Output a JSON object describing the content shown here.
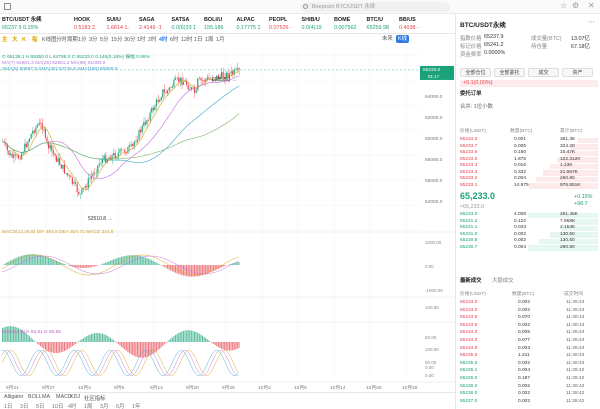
{
  "tabs": {
    "search_placeholder": "Beepcoin BTC/USDT 永续",
    "icons": [
      "home-icon",
      "star-icon",
      "settings-icon",
      "close-icon"
    ]
  },
  "tickers": [
    {
      "name": "BTC/USDT 永续",
      "price": "65237.9",
      "chg": "0.15%",
      "c": "g"
    },
    {
      "name": "HOOK",
      "price": "0.5183",
      "chg": "2.",
      "c": "r"
    },
    {
      "name": "SUI/U",
      "price": "1.6614",
      "chg": "1.",
      "c": "r"
    },
    {
      "name": "SAGA",
      "price": "2.4149",
      "chg": "-1",
      "c": "r"
    },
    {
      "name": "SATSA",
      "price": "0.0(6)33",
      "chg": "1",
      "c": "g"
    },
    {
      "name": "BOLI/U",
      "price": "155.186",
      "chg": "",
      "c": "g"
    },
    {
      "name": "ALPAC",
      "price": "0.17775",
      "chg": "1",
      "c": "g"
    },
    {
      "name": "PEOPL",
      "price": "0.07526",
      "chg": "-",
      "c": "r"
    },
    {
      "name": "SHIB/U",
      "price": "0.0(4)19",
      "chg": "",
      "c": "g"
    },
    {
      "name": "BOME",
      "price": "0.007562",
      "chg": "",
      "c": "g"
    },
    {
      "name": "BTC/U",
      "price": "65259.98",
      "chg": "",
      "c": "g"
    },
    {
      "name": "BB/US",
      "price": "0.4038",
      "chg": "-",
      "c": "r"
    }
  ],
  "toolbar": {
    "tools": [
      "主",
      "大",
      "K",
      "指"
    ],
    "chart_label": "K线图",
    "timeframes": [
      "分时",
      "周期",
      "1分",
      "3分",
      "5分",
      "15分",
      "30分",
      "1时",
      "2时",
      "4时",
      "6时",
      "12时",
      "1日",
      "1周",
      "1月"
    ],
    "active_tf": "4时",
    "right_labels": [
      "未来",
      "K线",
      ""
    ],
    "active_right": "K线"
  },
  "chart_info": {
    "pair": "BTC/USDT永续 · 4h",
    "ohlc": "O 65139.1 H 65350.0 L 64798.0 C 65233.0",
    "chg": "0.145(0.16%) 振幅 0.86%",
    "ma": "MA(7) 64861.3  MA(25) 62961.2  MA(99) 61000.9",
    "sma": "SMA(5) 60987.9  SMA(30) 63745.8  SMA(180) 60000.0",
    "high_label": "65858.0",
    "low_label": "52510.8",
    "last_price": "65233.0",
    "last_countdown": "01:17"
  },
  "price_axis": [
    "66000.0",
    "64000.0",
    "62000.0",
    "60000.0",
    "58000.0",
    "56000.0",
    "54000.0"
  ],
  "macd": {
    "label": "MACD(12,26,9)",
    "vals": "DIF 493.5  DEA 304.71  MACD 244.8",
    "axis": [
      "1000.00",
      "0.00",
      "-1000.00"
    ]
  },
  "kdj": {
    "axis": [
      "100.00",
      "50.00",
      "0.00"
    ]
  },
  "sub3": {
    "label": "KDJ(9,3,3)",
    "vals": "K 83.61  D 90.65",
    "axis": [
      "100.00",
      "50.00",
      "0.00"
    ]
  },
  "date_axis": [
    "9月21",
    "9月27",
    "10月3",
    "9月8",
    "9月14",
    "9月20",
    "9月26",
    "10月2",
    "10月8",
    "10月14",
    "10月20",
    "10月26"
  ],
  "bottom_bar": [
    "Alligator",
    "BOLL",
    "MA",
    "MACD",
    "KDJ",
    "社区指标"
  ],
  "bottom_tfs": [
    "1日",
    "3日",
    "5日",
    "10日",
    "4时",
    "1周",
    "3月",
    "6月",
    "1年"
  ],
  "right_panel": {
    "title": "BTC/USDT永续",
    "rows": [
      {
        "k": "指数价格",
        "v": "65237.9",
        "k2": "成交量(BTC)",
        "v2": "13.07亿"
      },
      {
        "k": "标记价格",
        "v": "65241.2",
        "k2": "持仓量",
        "v2": "67.18亿"
      },
      {
        "k": "资金费率",
        "v": "0.0000%",
        "k2": "",
        "v2": ""
      }
    ],
    "buttons": [
      "全部仓位",
      "全部委托",
      "成交",
      "资产"
    ],
    "alert": "+0.1(0.00%)",
    "ob_title": "委托订单",
    "ob_sub": "合并: 1位小数",
    "ob_hdr": [
      "价格(USDT)",
      "数量(BTC)",
      "累计(BTC)"
    ],
    "asks": [
      [
        "65234.0",
        "0.001",
        "361.38"
      ],
      [
        "65233.7",
        "0.005",
        "324.20"
      ],
      [
        "65233.6",
        "0.160",
        "10.47K"
      ],
      [
        "65233.5",
        "1.875",
        "122.312K"
      ],
      [
        "65233.4",
        "0.016",
        "1.23K"
      ],
      [
        "65233.3",
        "0.332",
        "21.657K"
      ],
      [
        "65233.2",
        "0.004",
        "260.90"
      ],
      [
        "65233.1",
        "14.975",
        "976.851K"
      ]
    ],
    "mid_price": "65,233.0",
    "mid_sub": "≈65,233.0",
    "mid_chg": "+0.15%",
    "mid_chg2": "+98.7",
    "bids": [
      [
        "65233.0",
        "4.008",
        "261.45K"
      ],
      [
        "65231.2",
        "0.122",
        "7.958K"
      ],
      [
        "65231.1",
        "0.033",
        "2.153K"
      ],
      [
        "65231.0",
        "0.002",
        "130.50"
      ],
      [
        "65230.8",
        "0.002",
        "130.50"
      ],
      [
        "65230.7",
        "0.004",
        "260.90"
      ]
    ],
    "trade_tabs": [
      "最新成交",
      "大额成交"
    ],
    "trade_hdr": [
      "价格(USDT)",
      "数量(BTC)",
      "成交时间"
    ],
    "trades": [
      [
        "65233.0",
        "0.002",
        "11:38:43",
        "r"
      ],
      [
        "65233.0",
        "0.002",
        "11:38:43",
        "r"
      ],
      [
        "65233.9",
        "0.070",
        "11:38:43",
        "r"
      ],
      [
        "65233.9",
        "0.002",
        "11:38:43",
        "r"
      ],
      [
        "65234.0",
        "0.005",
        "11:38:43",
        "r"
      ],
      [
        "65234.0",
        "0.077",
        "11:38:43",
        "r"
      ],
      [
        "65234.9",
        "0.003",
        "11:38:43",
        "r"
      ],
      [
        "65235.0",
        "1.211",
        "11:38:43",
        "r"
      ],
      [
        "65235.0",
        "0.002",
        "11:38:43",
        "g"
      ],
      [
        "65235.1",
        "0.004",
        "11:38:42",
        "g"
      ],
      [
        "65236.0",
        "0.187",
        "11:38:42",
        "g"
      ],
      [
        "65236.0",
        "0.002",
        "11:38:42",
        "g"
      ],
      [
        "65236.0",
        "0.002",
        "11:38:42",
        "g"
      ],
      [
        "65237.0",
        "0.002",
        "11:38:42",
        "g"
      ]
    ]
  },
  "chart_data": {
    "type": "candlestick",
    "candles_count": 150
  }
}
